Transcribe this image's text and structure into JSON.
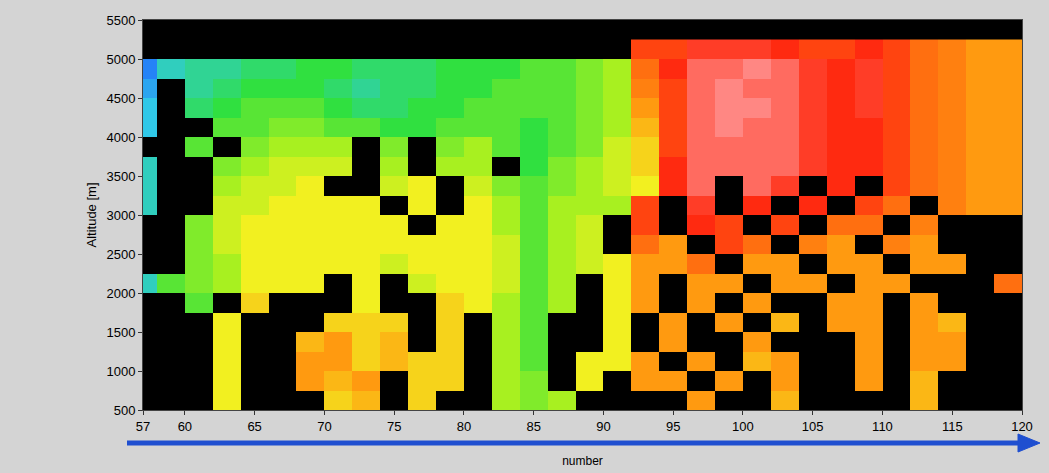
{
  "chart_data": {
    "type": "heatmap",
    "x_label": "number",
    "y_label": "Altitude [m]",
    "xlim": [
      57,
      120
    ],
    "ylim": [
      500,
      5500
    ],
    "xticks": [
      57,
      60,
      65,
      70,
      75,
      80,
      85,
      90,
      95,
      100,
      105,
      110,
      115,
      120
    ],
    "yticks": [
      500,
      1000,
      1500,
      2000,
      2500,
      3000,
      3500,
      4000,
      4500,
      5000,
      5500
    ],
    "zlim": [
      0,
      10
    ],
    "x": [
      57,
      59,
      61,
      63,
      65,
      67,
      69,
      71,
      73,
      75,
      77,
      79,
      81,
      83,
      85,
      87,
      89,
      91,
      93,
      95,
      97,
      99,
      101,
      103,
      105,
      107,
      109,
      111,
      113,
      115,
      117,
      119
    ],
    "y": [
      625,
      875,
      1125,
      1375,
      1625,
      1875,
      2125,
      2375,
      2625,
      2875,
      3125,
      3375,
      3625,
      3875,
      4125,
      4375,
      4625,
      4875,
      5125
    ],
    "z": [
      [
        null,
        null,
        null,
        6,
        null,
        null,
        null,
        6.5,
        7,
        null,
        6.5,
        null,
        null,
        5,
        4.5,
        5,
        null,
        null,
        null,
        null,
        7.5,
        null,
        null,
        7,
        null,
        null,
        null,
        null,
        7,
        null,
        null,
        null
      ],
      [
        null,
        null,
        null,
        6,
        null,
        null,
        7.5,
        7,
        7.5,
        null,
        6.5,
        6.5,
        null,
        5,
        4.5,
        null,
        6,
        null,
        7.5,
        7.5,
        null,
        7.5,
        null,
        7.5,
        null,
        null,
        7.5,
        null,
        7,
        null,
        null,
        null
      ],
      [
        null,
        null,
        null,
        6,
        null,
        null,
        7.5,
        7.5,
        6.5,
        7,
        6.5,
        6.5,
        null,
        5,
        4,
        null,
        6,
        6,
        7.5,
        null,
        7.5,
        null,
        7,
        7.5,
        null,
        null,
        7.5,
        null,
        7.5,
        7.5,
        null,
        null
      ],
      [
        null,
        null,
        null,
        6,
        null,
        null,
        7,
        7.5,
        6.5,
        7,
        null,
        6.5,
        null,
        5,
        4,
        null,
        null,
        6,
        null,
        7.5,
        null,
        null,
        7.5,
        null,
        null,
        null,
        7.5,
        null,
        7.5,
        7.5,
        null,
        null
      ],
      [
        null,
        null,
        null,
        6,
        null,
        null,
        null,
        6.5,
        6.5,
        6.5,
        null,
        6.5,
        null,
        5,
        4,
        null,
        null,
        6,
        null,
        7.5,
        null,
        7.5,
        null,
        7,
        null,
        7.5,
        7.5,
        null,
        7.5,
        7,
        null,
        null
      ],
      [
        null,
        null,
        4,
        null,
        6.5,
        null,
        null,
        null,
        6,
        null,
        null,
        6.5,
        6,
        5,
        4,
        5,
        null,
        6,
        7.5,
        null,
        7.5,
        null,
        7.5,
        null,
        null,
        7.5,
        7.5,
        null,
        7.5,
        null,
        null,
        null
      ],
      [
        2,
        4,
        4.5,
        5,
        6,
        6,
        6,
        null,
        6,
        null,
        5.5,
        6,
        6,
        5.5,
        4,
        5,
        null,
        6,
        7.5,
        null,
        7.5,
        7.5,
        null,
        7.5,
        7.5,
        null,
        7.5,
        7.5,
        null,
        null,
        null,
        8
      ],
      [
        null,
        null,
        4.5,
        5,
        6,
        6,
        6,
        6,
        6,
        5.5,
        6,
        6,
        6,
        5.5,
        4,
        5,
        5.5,
        6,
        7.5,
        7.5,
        8,
        null,
        7.5,
        7.5,
        null,
        7.5,
        7.5,
        null,
        7.5,
        7.5,
        null,
        null
      ],
      [
        null,
        null,
        4.5,
        5.5,
        6,
        6,
        6,
        6,
        6,
        6,
        6,
        6,
        6,
        5.5,
        4,
        5,
        5.5,
        null,
        8,
        7.5,
        null,
        8.5,
        8,
        null,
        7.8,
        7.5,
        null,
        7.8,
        7.5,
        null,
        null,
        null
      ],
      [
        null,
        null,
        4.5,
        5.5,
        6,
        6,
        6,
        6,
        6,
        6,
        null,
        6,
        6,
        5,
        4,
        5,
        5.5,
        null,
        8.5,
        null,
        8.8,
        8.5,
        null,
        8.5,
        null,
        8,
        8,
        null,
        7.8,
        null,
        null,
        null
      ],
      [
        2,
        null,
        null,
        5.5,
        5.5,
        6,
        6,
        6,
        6,
        null,
        6,
        null,
        6,
        5,
        4,
        5,
        5,
        5,
        8.5,
        null,
        9,
        null,
        8.8,
        null,
        8.8,
        null,
        8.5,
        8,
        null,
        7.8,
        7.5,
        7.5
      ],
      [
        2,
        null,
        null,
        5,
        5.5,
        5.5,
        6,
        null,
        null,
        5.5,
        6,
        null,
        5.5,
        4.5,
        4,
        4.5,
        5,
        5.5,
        6,
        8.8,
        9.5,
        null,
        9.5,
        9,
        null,
        8.8,
        null,
        8.5,
        8,
        7.8,
        7.5,
        7.5
      ],
      [
        2,
        null,
        null,
        4.5,
        5,
        5.5,
        5.5,
        5.5,
        null,
        5,
        null,
        5,
        5,
        null,
        3.5,
        4.5,
        5,
        5.5,
        6.5,
        8.8,
        9.5,
        9.5,
        9.5,
        9.5,
        9,
        8.8,
        8.8,
        8.5,
        8,
        7.8,
        7.5,
        7.5
      ],
      [
        null,
        null,
        4,
        null,
        4.5,
        5,
        5,
        5,
        null,
        4.5,
        null,
        4.5,
        5,
        4,
        3.5,
        4,
        4.5,
        5.5,
        6.5,
        8.5,
        9.5,
        9.5,
        9.5,
        9.5,
        9,
        8.8,
        8.8,
        8.5,
        8,
        7.8,
        7.5,
        7.5
      ],
      [
        1.5,
        null,
        null,
        4,
        4,
        4.5,
        4.5,
        4,
        4,
        3.5,
        3.5,
        4,
        4,
        4,
        3.5,
        4,
        4.5,
        5,
        7,
        8.5,
        9.5,
        9.8,
        9.5,
        9.5,
        9,
        8.8,
        8.8,
        8.5,
        8,
        7.8,
        7.5,
        7.5
      ],
      [
        1.5,
        null,
        3,
        3.5,
        4,
        4,
        4,
        3.5,
        3,
        3,
        3.5,
        3.5,
        4,
        4,
        4,
        4,
        4.5,
        5,
        7.5,
        8.5,
        9.5,
        9.8,
        9.8,
        9.5,
        9,
        8.8,
        9,
        8.5,
        8,
        7.8,
        7.5,
        7.5
      ],
      [
        1,
        null,
        2.5,
        3,
        3.5,
        3.5,
        3.5,
        3,
        2.5,
        3,
        3,
        3.5,
        3.5,
        4,
        4,
        4,
        4.5,
        5,
        7.8,
        8.5,
        9.5,
        9.8,
        9.5,
        9.5,
        9,
        8.8,
        9,
        8.5,
        8,
        7.8,
        7.5,
        7.5
      ],
      [
        0.5,
        2,
        2.5,
        2.5,
        3,
        3,
        3.5,
        3.5,
        3,
        3,
        3,
        3.5,
        3.5,
        3.5,
        4,
        4,
        4.5,
        5,
        8,
        8.8,
        9.5,
        9.5,
        9.8,
        9.5,
        9,
        8.8,
        9,
        8.5,
        8,
        7.8,
        7.5,
        7.5
      ],
      [
        null,
        null,
        null,
        null,
        null,
        null,
        null,
        null,
        null,
        null,
        null,
        null,
        null,
        null,
        null,
        null,
        null,
        null,
        8.5,
        8.5,
        9,
        9,
        9,
        8.8,
        8.5,
        8.5,
        8.8,
        8.5,
        8,
        7.8,
        7.5,
        7.5
      ]
    ]
  }
}
